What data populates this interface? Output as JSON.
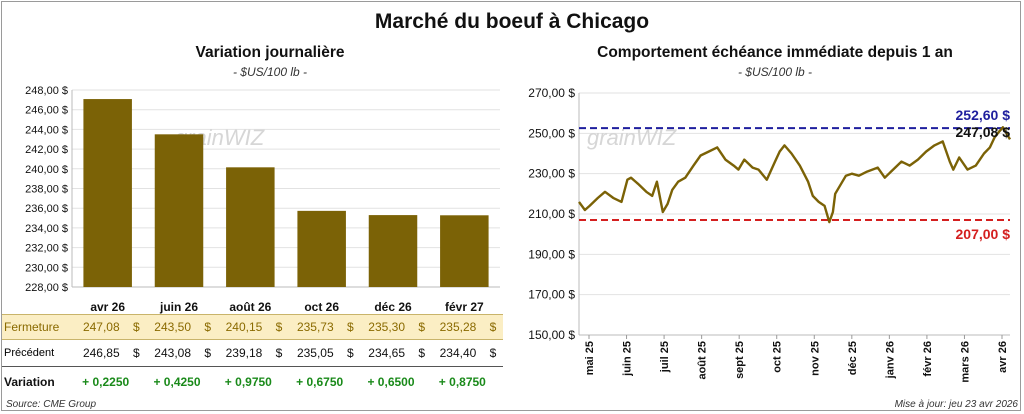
{
  "title": "Marché du boeuf à Chicago",
  "left": {
    "title": "Variation journalière",
    "unit": "- $US/100 lb -",
    "watermark": "grainWIZ"
  },
  "right": {
    "title": "Comportement  échéance immédiate depuis 1 an",
    "unit": "- $US/100 lb -",
    "watermark": "grainWIZ",
    "high_label": "252,60 $",
    "low_label": "207,00 $",
    "last_label": "247,08 $"
  },
  "table": {
    "rows": [
      {
        "label": "Fermeture",
        "values": [
          "247,08",
          "243,50",
          "240,15",
          "235,73",
          "235,30",
          "235,28"
        ],
        "suffix": "$"
      },
      {
        "label": "Précédent",
        "values": [
          "246,85",
          "243,08",
          "239,18",
          "235,05",
          "234,65",
          "234,40"
        ],
        "suffix": "$"
      },
      {
        "label": "Variation",
        "values": [
          "+ 0,2250",
          "+ 0,4250",
          "+ 0,9750",
          "+ 0,6750",
          "+ 0,6500",
          "+ 0,8750"
        ],
        "suffix": ""
      }
    ]
  },
  "footer": {
    "source": "Source: CME Group",
    "updated": "Mise à jour: jeu 23 avr 2026"
  },
  "colors": {
    "bar": "#7b6206",
    "line": "#7b6206",
    "high_line": "#1f1f9e",
    "low_line": "#d41f1f",
    "fermeture_bg": "#fbeec4",
    "variation_text": "#1a8a1a"
  },
  "chart_data": [
    {
      "type": "bar",
      "title": "Variation journalière",
      "ylabel": "- $US/100 lb -",
      "categories": [
        "avr 26",
        "juin 26",
        "août 26",
        "oct 26",
        "déc 26",
        "févr 27"
      ],
      "values": [
        247.08,
        243.5,
        240.15,
        235.73,
        235.3,
        235.28
      ],
      "ylim": [
        228,
        248
      ],
      "yticks": [
        "228,00 $",
        "230,00 $",
        "232,00 $",
        "234,00 $",
        "236,00 $",
        "238,00 $",
        "240,00 $",
        "242,00 $",
        "244,00 $",
        "246,00 $",
        "248,00 $"
      ],
      "grid": true
    },
    {
      "type": "line",
      "title": "Comportement  échéance immédiate depuis 1 an",
      "ylabel": "- $US/100 lb -",
      "ylim": [
        150,
        270
      ],
      "yticks": [
        "150,00 $",
        "170,00 $",
        "190,00 $",
        "210,00 $",
        "230,00 $",
        "250,00 $",
        "270,00 $"
      ],
      "xticks": [
        "mai 25",
        "juin 25",
        "juil 25",
        "août 25",
        "sept 25",
        "oct 25",
        "nov 25",
        "déc 25",
        "janv 26",
        "févr 26",
        "mars 26",
        "avr 26"
      ],
      "x_start": "2025-04-23",
      "x_end": "2026-04-23",
      "series": [
        {
          "x": [
            "2025-04-23",
            "2025-04-28",
            "2025-05-02",
            "2025-05-09",
            "2025-05-15",
            "2025-05-22",
            "2025-05-29",
            "2025-06-03",
            "2025-06-06",
            "2025-06-12",
            "2025-06-19",
            "2025-06-24",
            "2025-06-28",
            "2025-07-03",
            "2025-07-07",
            "2025-07-11",
            "2025-07-16",
            "2025-07-22",
            "2025-07-29",
            "2025-08-04",
            "2025-08-11",
            "2025-08-18",
            "2025-08-25",
            "2025-09-01",
            "2025-09-05",
            "2025-09-10",
            "2025-09-17",
            "2025-09-22",
            "2025-09-29",
            "2025-10-06",
            "2025-10-10",
            "2025-10-14",
            "2025-10-20",
            "2025-10-27",
            "2025-11-03",
            "2025-11-07",
            "2025-11-12",
            "2025-11-17",
            "2025-11-21",
            "2025-11-24",
            "2025-11-26",
            "2025-12-01",
            "2025-12-05",
            "2025-12-10",
            "2025-12-16",
            "2025-12-23",
            "2026-01-01",
            "2026-01-07",
            "2026-01-14",
            "2026-01-21",
            "2026-01-28",
            "2026-02-04",
            "2026-02-11",
            "2026-02-18",
            "2026-02-25",
            "2026-03-03",
            "2026-03-06",
            "2026-03-11",
            "2026-03-18",
            "2026-03-25",
            "2026-04-01",
            "2026-04-06",
            "2026-04-10",
            "2026-04-14",
            "2026-04-17",
            "2026-04-21",
            "2026-04-23"
          ],
          "y": [
            216,
            212,
            214,
            218,
            221,
            218,
            216,
            227,
            228,
            225,
            221,
            219,
            226,
            211,
            215,
            222,
            226,
            228,
            234,
            239,
            241,
            243,
            237,
            234,
            232,
            237,
            233,
            232,
            227,
            236,
            241,
            244,
            240,
            234,
            226,
            219,
            216,
            214,
            206,
            211,
            220,
            225,
            229,
            230,
            229,
            231,
            233,
            228,
            232,
            236,
            234,
            237,
            241,
            244,
            246,
            236,
            232,
            238,
            232,
            234,
            240,
            243,
            248,
            251,
            253,
            249,
            247
          ]
        }
      ],
      "reference_lines": [
        {
          "value": 252.6,
          "label": "252,60 $"
        },
        {
          "value": 207.0,
          "label": "207,00 $"
        }
      ],
      "last_value": 247.08,
      "grid": true
    }
  ]
}
